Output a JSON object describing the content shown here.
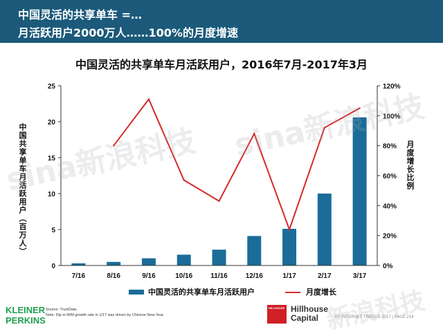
{
  "header": {
    "line1": "中国灵活的共享单车 =…",
    "line2": "月活跃用户2000万人……100%的月度增速",
    "background": "#1b5a7a"
  },
  "chart_data": {
    "type": "bar",
    "title": "中国灵活的共享单车月活跃用户，2016年7月-2017年3月",
    "categories": [
      "7/16",
      "8/16",
      "9/16",
      "10/16",
      "11/16",
      "12/16",
      "1/17",
      "2/17",
      "3/17"
    ],
    "series": [
      {
        "name": "中国灵活的共享单车月活跃用户",
        "type": "bar",
        "axis": "left",
        "color": "#1b6c99",
        "values": [
          0.3,
          0.5,
          1.0,
          1.5,
          2.2,
          4.1,
          5.1,
          10.0,
          20.6
        ]
      },
      {
        "name": "月度增长",
        "type": "line",
        "axis": "right",
        "color": "#d42a2a",
        "values": [
          null,
          80,
          111,
          57,
          43,
          88,
          24,
          92,
          105
        ]
      }
    ],
    "ylabel_left": "中国共享单车月活跃用户（百万人）",
    "ylabel_right": "月度增长比例",
    "ylim_left": [
      0,
      25
    ],
    "yticks_left": [
      "0",
      "5",
      "10",
      "15",
      "20",
      "25"
    ],
    "ylim_right": [
      0,
      120
    ],
    "yticks_right": [
      "0%",
      "20%",
      "40%",
      "60%",
      "80%",
      "100%",
      "120%"
    ],
    "grid": false,
    "legend_position": "bottom"
  },
  "legend": {
    "bar_label": "中国灵活的共享单车月活跃用户",
    "line_label": "月度增长"
  },
  "footer": {
    "logo_left": "KLEINER PERKINS",
    "source": "Source: TrustData.",
    "note": "Note: Dip in M/M growth rate in 1/17 was driven by Chinese New Year.",
    "logo_right": "Hillhouse Capital",
    "logo_right_box": "HILLHOUSE",
    "page_text": "KP INTERNET TRENDS 2017 | PAGE 214"
  },
  "watermark": {
    "text1": "sina新浪科技",
    "text2": "新浪科技"
  }
}
